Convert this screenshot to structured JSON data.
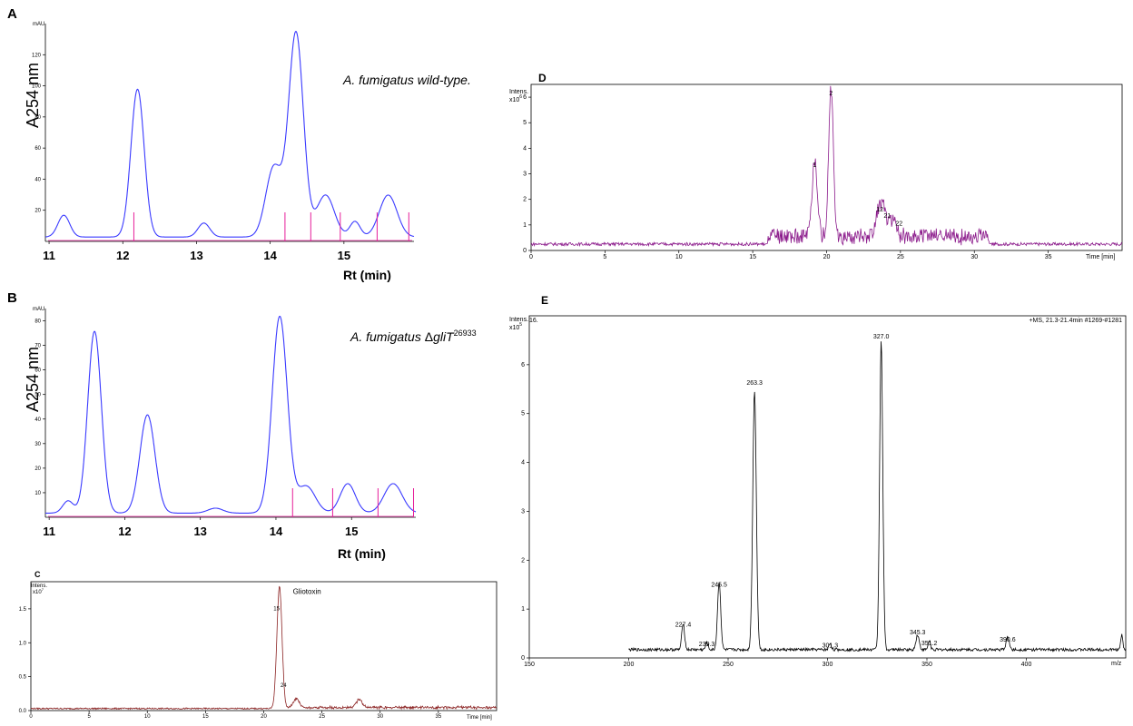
{
  "panels": {
    "A": {
      "letter": "A",
      "ylabel": "A254 nm",
      "unit_label": "mAU",
      "annotation": "A. fumigatus wild-type.",
      "xlabel": "Rt (min)"
    },
    "B": {
      "letter": "B",
      "ylabel": "A254 nm",
      "unit_label": "mAU",
      "annotation_prefix": "A. fumigatus ",
      "annotation_delta": "Δ",
      "annotation_gene": "gliT",
      "annotation_sup": "26933",
      "xlabel": "Rt (min)"
    },
    "C": {
      "letter": "C",
      "y_unit": "Intens.",
      "y_exp": "x10",
      "y_exp_sup": "7",
      "x_unit": "Time [min]"
    },
    "D": {
      "letter": "D",
      "y_unit": "Intens.",
      "y_exp": "x10",
      "y_exp_sup": "6",
      "x_unit": "Time [min]"
    },
    "E": {
      "letter": "E",
      "y_unit": "Intens.",
      "y_exp": "x10",
      "y_exp_sup": "5",
      "x_unit": "m/z",
      "corner_label": "16.",
      "header": "+MS, 21.3-21.4min #1269-#1281"
    }
  },
  "chart_data": [
    {
      "id": "A",
      "type": "line",
      "title": "",
      "xlabel": "Rt (min)",
      "ylabel": "A254 nm",
      "xlim": [
        10.95,
        15.95
      ],
      "ylim": [
        0,
        140
      ],
      "xticks": [
        11,
        12,
        13,
        14,
        15
      ],
      "yticks": [
        20,
        40,
        60,
        80,
        100,
        120
      ],
      "line_color": "#3a3aff",
      "peaks": [
        [
          11.2,
          14,
          0.08
        ],
        [
          12.2,
          95,
          0.09
        ],
        [
          13.1,
          9,
          0.08
        ],
        [
          14.05,
          45,
          0.11
        ],
        [
          14.35,
          131,
          0.1
        ],
        [
          14.75,
          27,
          0.12
        ],
        [
          15.15,
          10,
          0.07
        ],
        [
          15.6,
          27,
          0.12
        ]
      ],
      "markers": [
        12.15,
        14.2,
        14.55,
        14.95,
        15.45,
        15.88
      ]
    },
    {
      "id": "B",
      "type": "line",
      "title": "",
      "xlabel": "Rt (min)",
      "ylabel": "A254 nm",
      "xlim": [
        10.95,
        15.85
      ],
      "ylim": [
        0,
        85
      ],
      "xticks": [
        11,
        12,
        13,
        14,
        15
      ],
      "yticks": [
        10,
        20,
        30,
        40,
        50,
        60,
        70,
        80
      ],
      "line_color": "#3a3aff",
      "peaks": [
        [
          11.25,
          5,
          0.07
        ],
        [
          11.6,
          74,
          0.09
        ],
        [
          12.3,
          40,
          0.1
        ],
        [
          13.2,
          2,
          0.1
        ],
        [
          14.05,
          80,
          0.1
        ],
        [
          14.4,
          11,
          0.12
        ],
        [
          14.95,
          12,
          0.1
        ],
        [
          15.55,
          12,
          0.12
        ]
      ],
      "markers": [
        14.22,
        14.75,
        15.35,
        15.82
      ]
    },
    {
      "id": "C",
      "type": "line",
      "title": "",
      "xlabel": "Time [min]",
      "ylabel": "Intens. x10^7",
      "xlim": [
        0,
        40
      ],
      "ylim": [
        0,
        1.9
      ],
      "xticks": [
        0,
        5,
        10,
        15,
        20,
        25,
        30,
        35
      ],
      "yticks": [
        0.0,
        0.5,
        1.0,
        1.5
      ],
      "line_color": "#8b2323",
      "baseline": 0.03,
      "peaks": [
        [
          21.35,
          1.8,
          0.22
        ],
        [
          22.8,
          0.13,
          0.25
        ],
        [
          28.2,
          0.12,
          0.25
        ]
      ],
      "peak_labels": [
        {
          "x": 21.1,
          "y": 1.45,
          "text": "15"
        },
        {
          "x": 21.7,
          "y": 0.32,
          "text": "24"
        }
      ],
      "annotations": [
        {
          "x": 22.5,
          "y": 1.8,
          "text": "Gliotoxin"
        }
      ]
    },
    {
      "id": "D",
      "type": "line",
      "title": "",
      "xlabel": "Time [min]",
      "ylabel": "Intens. x10^6",
      "xlim": [
        0,
        40
      ],
      "ylim": [
        0,
        6.5
      ],
      "xticks": [
        0,
        5,
        10,
        15,
        20,
        25,
        30,
        35
      ],
      "yticks": [
        0,
        1,
        2,
        3,
        4,
        5,
        6
      ],
      "line_color": "#8b1a8b",
      "baseline": 0.25,
      "peaks": [
        [
          19.2,
          3.0,
          0.18
        ],
        [
          20.3,
          5.8,
          0.16
        ],
        [
          23.5,
          0.9,
          0.2
        ],
        [
          23.9,
          1.1,
          0.2
        ],
        [
          24.5,
          0.7,
          0.2
        ]
      ],
      "peak_labels": [
        {
          "x": 19.2,
          "y": 3.2,
          "text": "1"
        },
        {
          "x": 20.3,
          "y": 6.0,
          "text": "2"
        },
        {
          "x": 23.6,
          "y": 1.45,
          "text": "12"
        },
        {
          "x": 24.1,
          "y": 1.2,
          "text": "21"
        },
        {
          "x": 24.9,
          "y": 0.9,
          "text": "22"
        }
      ]
    },
    {
      "id": "E",
      "type": "line",
      "title": "",
      "xlabel": "m/z",
      "ylabel": "Intens. x10^5",
      "xlim": [
        150,
        450
      ],
      "ylim": [
        0,
        7.0
      ],
      "xticks": [
        150,
        200,
        250,
        300,
        350,
        400
      ],
      "yticks": [
        0,
        1,
        2,
        3,
        4,
        5,
        6
      ],
      "line_color": "#000000",
      "range_start": 200,
      "peaks": [
        [
          227.4,
          0.55,
          0.7
        ],
        [
          239.3,
          0.15,
          0.6
        ],
        [
          245.5,
          1.38,
          0.8
        ],
        [
          263.3,
          5.3,
          0.9
        ],
        [
          301.3,
          0.13,
          0.6
        ],
        [
          327.0,
          6.3,
          0.8
        ],
        [
          345.3,
          0.3,
          0.8
        ],
        [
          351.2,
          0.18,
          0.6
        ],
        [
          390.6,
          0.25,
          0.8
        ],
        [
          448,
          0.3,
          0.5
        ]
      ],
      "peak_labels": [
        {
          "x": 227.4,
          "y": 0.6,
          "text": "227.4"
        },
        {
          "x": 239.3,
          "y": 0.2,
          "text": "239.3"
        },
        {
          "x": 245.5,
          "y": 1.42,
          "text": "245.5"
        },
        {
          "x": 263.3,
          "y": 5.55,
          "text": "263.3"
        },
        {
          "x": 301.3,
          "y": 0.18,
          "text": "301.3"
        },
        {
          "x": 327.0,
          "y": 6.5,
          "text": "327.0"
        },
        {
          "x": 345.3,
          "y": 0.45,
          "text": "345.3"
        },
        {
          "x": 351.2,
          "y": 0.22,
          "text": "351.2"
        },
        {
          "x": 390.6,
          "y": 0.3,
          "text": "390.6"
        }
      ]
    }
  ]
}
